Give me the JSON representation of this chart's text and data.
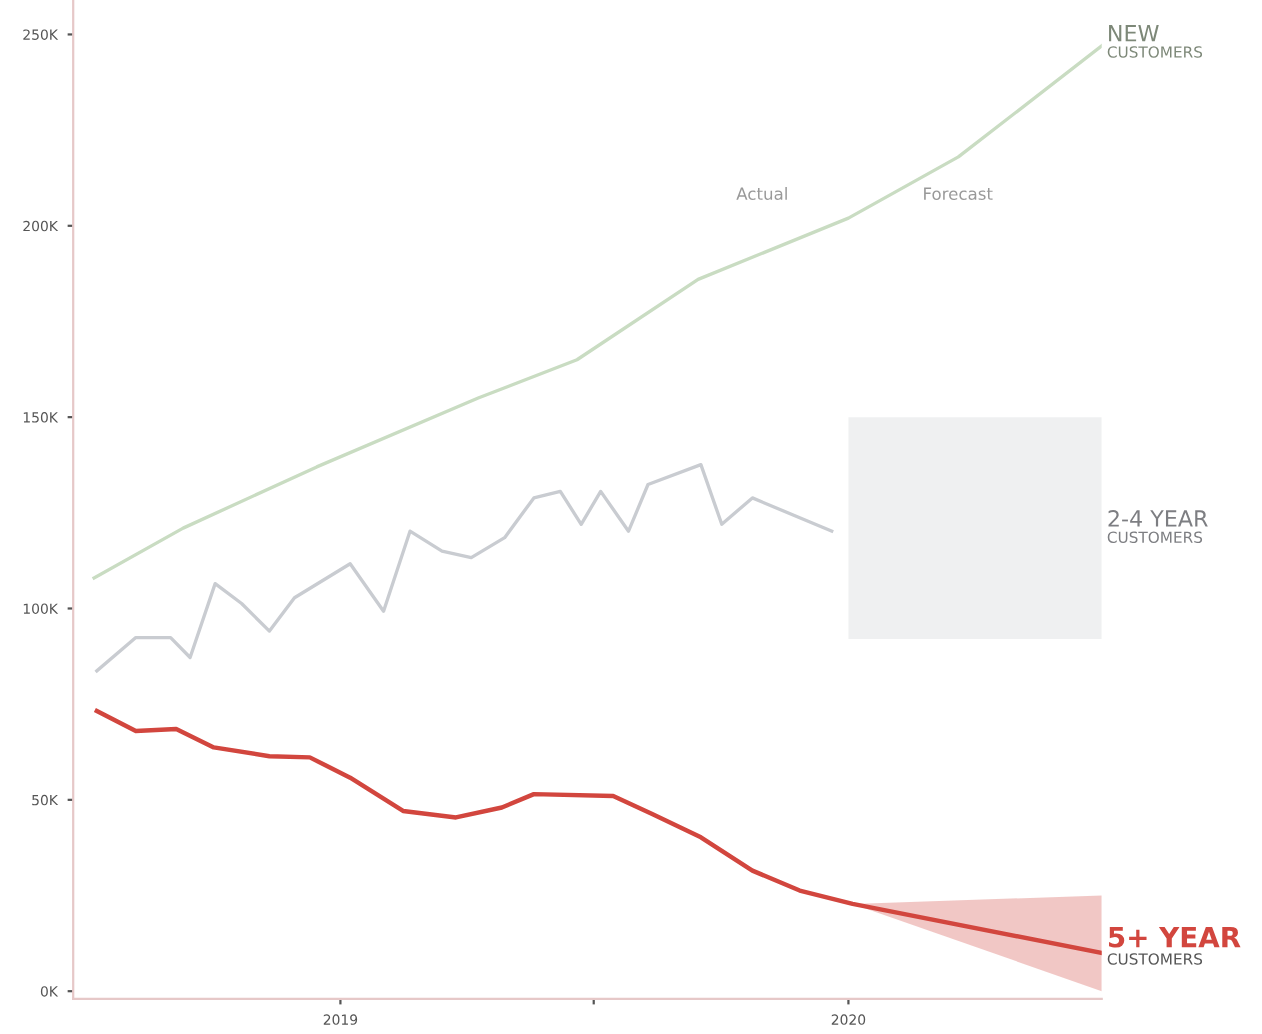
{
  "chart_data": {
    "type": "line",
    "annotations": [
      "Actual",
      "Forecast"
    ],
    "xlim": [
      "2018-06-23",
      "2020-07-01"
    ],
    "xticks": [
      {
        "value": "2019-01-01",
        "label": "2019"
      },
      {
        "value": "2019-07-02",
        "label": null
      },
      {
        "value": "2020-01-01",
        "label": "2020"
      }
    ],
    "ylim": [
      -2,
      259
    ],
    "yticks": [
      {
        "value": 0,
        "label": "0K"
      },
      {
        "value": 50,
        "label": "50K"
      },
      {
        "value": 100,
        "label": "100K"
      },
      {
        "value": 150,
        "label": "150K"
      },
      {
        "value": 200,
        "label": "200K"
      },
      {
        "value": 250,
        "label": "250K"
      }
    ],
    "grid": false,
    "marker": "none",
    "line_style": "solid",
    "series": [
      {
        "name": "NEW\nCUSTOMERS",
        "color": "#c9dcc2",
        "x": [
          "2018-07-08",
          "2018-09-10",
          "2018-12-15",
          "2019-04-10",
          "2019-06-20",
          "2019-09-15",
          "2020-01-01",
          "2020-03-20",
          "2020-07-01"
        ],
        "values": [
          108,
          121,
          137,
          155,
          165,
          186,
          202,
          218,
          247
        ]
      },
      {
        "name": "2-4 YEAR\nCUSTOMERS",
        "color": "#c9ccd1",
        "x": [
          "2018-07-10",
          "2018-08-07",
          "2018-09-01",
          "2018-09-15",
          "2018-10-03",
          "2018-10-22",
          "2018-11-11",
          "2018-11-29",
          "2019-01-08",
          "2019-02-01",
          "2019-02-20",
          "2019-03-15",
          "2019-04-05",
          "2019-04-29",
          "2019-05-20",
          "2019-06-08",
          "2019-06-23",
          "2019-07-07",
          "2019-07-27",
          "2019-08-10",
          "2019-09-17",
          "2019-10-02",
          "2019-10-24",
          "2019-11-27",
          "2019-12-20",
          "2020-01-01",
          "2020-07-01"
        ],
        "values": [
          83.7,
          92.4,
          92.4,
          87.2,
          106.5,
          101.3,
          94.1,
          102.8,
          111.7,
          99.3,
          120.2,
          115,
          113.3,
          118.5,
          128.9,
          130.6,
          122,
          130.6,
          120.2,
          132.4,
          137.6,
          122,
          128.9,
          123.7,
          120.2,
          null,
          null
        ],
        "lower": [
          null,
          null,
          null,
          null,
          null,
          null,
          null,
          null,
          null,
          null,
          null,
          null,
          null,
          null,
          null,
          null,
          null,
          null,
          null,
          null,
          null,
          null,
          null,
          null,
          null,
          92,
          92
        ],
        "upper": [
          null,
          null,
          null,
          null,
          null,
          null,
          null,
          null,
          null,
          null,
          null,
          null,
          null,
          null,
          null,
          null,
          null,
          null,
          null,
          null,
          null,
          null,
          null,
          null,
          null,
          150,
          150
        ]
      },
      {
        "name": "5+ YEAR\nCUSTOMERS",
        "color": "#d2463e",
        "x": [
          "2018-07-10",
          "2018-08-07",
          "2018-09-05",
          "2018-10-02",
          "2018-11-11",
          "2018-12-10",
          "2019-01-08",
          "2019-02-15",
          "2019-03-25",
          "2019-04-27",
          "2019-05-20",
          "2019-07-16",
          "2019-08-13",
          "2019-09-17",
          "2019-10-24",
          "2019-11-27",
          "2020-01-04",
          "2020-07-01"
        ],
        "values": [
          73.2,
          68,
          68.5,
          63.7,
          61.4,
          61.1,
          55.8,
          47.1,
          45.4,
          48,
          51.5,
          51,
          46.3,
          40.2,
          31.5,
          26.3,
          22.8,
          10
        ],
        "lower": [
          null,
          null,
          null,
          null,
          null,
          null,
          null,
          null,
          null,
          null,
          null,
          null,
          null,
          null,
          null,
          null,
          22.8,
          0
        ],
        "upper": [
          null,
          null,
          null,
          null,
          null,
          null,
          null,
          null,
          null,
          null,
          null,
          null,
          null,
          null,
          null,
          null,
          22.8,
          25
        ]
      }
    ]
  }
}
